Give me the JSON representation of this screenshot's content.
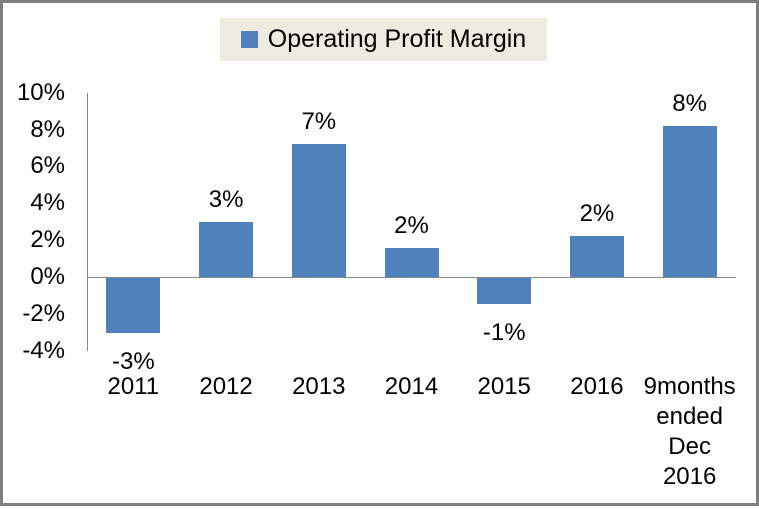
{
  "window": {
    "background": "#ffffff",
    "frame_border_color": "#7f7f7f"
  },
  "colors": {
    "bar": "#4f81bd",
    "axis_line": "#868686",
    "text": "#000000",
    "legend_background": "#eeece1"
  },
  "legend": {
    "label": "Operating Profit Margin",
    "marker_color": "#4f81bd",
    "background": "#eeece1",
    "position": "top-center"
  },
  "chart_data": {
    "type": "bar",
    "title": "",
    "xlabel": "",
    "ylabel": "",
    "series_name": "Operating Profit Margin",
    "categories": [
      "2011",
      "2012",
      "2013",
      "2014",
      "2015",
      "2016",
      "9months\nended\nDec\n2016"
    ],
    "values": [
      -3.0,
      3.0,
      7.2,
      1.6,
      -1.4,
      2.2,
      8.2
    ],
    "data_labels": [
      "-3%",
      "3%",
      "7%",
      "2%",
      "-1%",
      "2%",
      "8%"
    ],
    "y_ticks": [
      10,
      8,
      6,
      4,
      2,
      0,
      -2,
      -4
    ],
    "y_tick_labels": [
      "10%",
      "8%",
      "6%",
      "4%",
      "2%",
      "0%",
      "-2%",
      "-4%"
    ],
    "ylim": [
      -4,
      10
    ],
    "grid": false,
    "legend_position": "top-center",
    "bar_color": "#4f81bd"
  }
}
